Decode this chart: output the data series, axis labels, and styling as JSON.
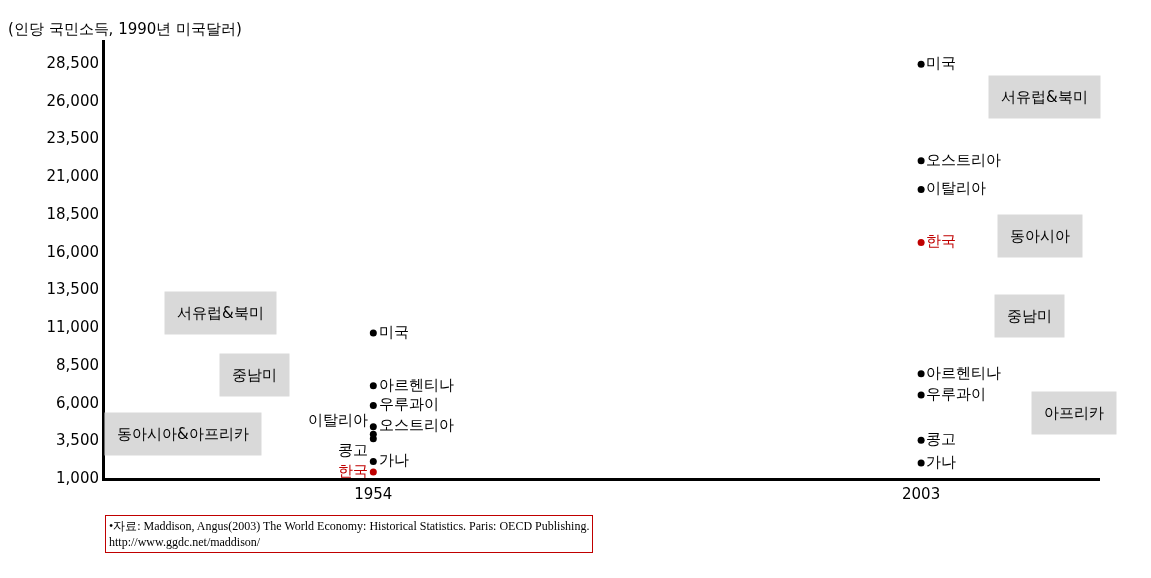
{
  "chart_data": {
    "type": "scatter",
    "ylabel": "(인당 국민소득, 1990년 미국달러)",
    "x": [
      1954,
      2003
    ],
    "xlim": [
      1930,
      2019
    ],
    "xticks": [
      1954,
      2003
    ],
    "ylim": [
      1000,
      30000
    ],
    "yticks": [
      {
        "value": 1000,
        "label": "1,000"
      },
      {
        "value": 3500,
        "label": "3,500"
      },
      {
        "value": 6000,
        "label": "6,000"
      },
      {
        "value": 8500,
        "label": "8,500"
      },
      {
        "value": 11000,
        "label": "11,000"
      },
      {
        "value": 13500,
        "label": "13,500"
      },
      {
        "value": 16000,
        "label": "16,000"
      },
      {
        "value": 18500,
        "label": "18,500"
      },
      {
        "value": 21000,
        "label": "21,000"
      },
      {
        "value": 23500,
        "label": "23,500"
      },
      {
        "value": 26000,
        "label": "26,000"
      },
      {
        "value": 28500,
        "label": "28,500"
      }
    ],
    "marker": "circle",
    "legend": false,
    "series": [
      {
        "name": "미국",
        "color": "#000000",
        "values": [
          10600,
          28400
        ]
      },
      {
        "name": "오스트리아",
        "color": "#000000",
        "values": [
          4400,
          22000
        ]
      },
      {
        "name": "이탈리아",
        "color": "#000000",
        "values": [
          3900,
          20100
        ]
      },
      {
        "name": "아르헨티나",
        "color": "#000000",
        "values": [
          7100,
          7900
        ]
      },
      {
        "name": "우루과이",
        "color": "#000000",
        "values": [
          5800,
          6500
        ]
      },
      {
        "name": "한국",
        "color": "#c00000",
        "values": [
          1400,
          16600
        ]
      },
      {
        "name": "콩고",
        "color": "#000000",
        "values": [
          3600,
          3500
        ]
      },
      {
        "name": "가나",
        "color": "#000000",
        "values": [
          2100,
          2000
        ]
      }
    ],
    "annotations": [
      "서유럽&북미",
      "중남미",
      "동아시아&아프리카",
      "서유럽&북미",
      "동아시아",
      "중남미",
      "아프리카",
      "•자료: Maddison, Angus(2003) The World Economy: Historical Statistics. Paris: OECD Publishing.\nhttp://www.ggdc.net/maddison/"
    ]
  }
}
